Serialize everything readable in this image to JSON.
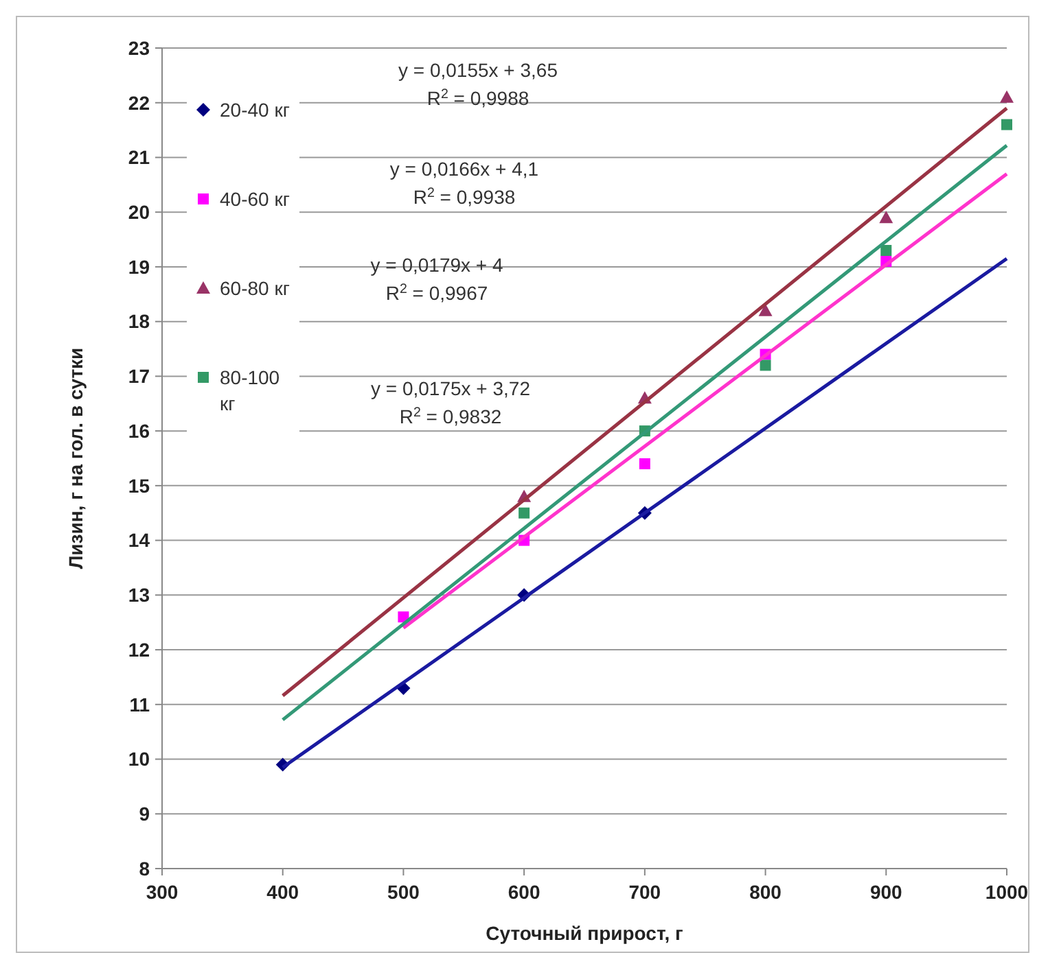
{
  "chart_data": {
    "type": "scatter",
    "xlabel": "Суточный прирост, г",
    "ylabel": "Лизин, г на гол. в сутки",
    "xlim": [
      300,
      1000
    ],
    "ylim": [
      8,
      23
    ],
    "xticks": [
      300,
      400,
      500,
      600,
      700,
      800,
      900,
      1000
    ],
    "yticks": [
      8,
      9,
      10,
      11,
      12,
      13,
      14,
      15,
      16,
      17,
      18,
      19,
      20,
      21,
      22,
      23
    ],
    "grid": "y",
    "legend": "top left",
    "series": [
      {
        "name": "20-40 кг",
        "color": "#000080",
        "marker": "diamond",
        "x": [
          400,
          500,
          600,
          700
        ],
        "values": [
          9.9,
          11.3,
          13.0,
          14.5
        ]
      },
      {
        "name": "40-60 кг",
        "color": "#ff00ff",
        "marker": "square",
        "x": [
          500,
          600,
          700,
          800,
          900
        ],
        "values": [
          12.6,
          14.0,
          15.4,
          17.4,
          19.1
        ]
      },
      {
        "name": "60-80 кг",
        "color": "#993366",
        "marker": "triangle",
        "x": [
          600,
          700,
          800,
          900,
          1000
        ],
        "values": [
          14.8,
          16.6,
          18.2,
          19.9,
          22.1
        ]
      },
      {
        "name": "80-100 кг",
        "color": "#339966",
        "marker": "square",
        "x": [
          600,
          700,
          800,
          900,
          1000
        ],
        "values": [
          14.5,
          16.0,
          17.2,
          19.3,
          21.6
        ]
      },
      {
        "type": "line",
        "color": "#1a1aa0",
        "x": [
          400,
          1000
        ],
        "values": [
          9.85,
          19.15
        ]
      },
      {
        "type": "line",
        "color": "#ff33cc",
        "x": [
          500,
          1000
        ],
        "values": [
          12.4,
          20.7
        ]
      },
      {
        "type": "line",
        "color": "#993344",
        "x": [
          400,
          1000
        ],
        "values": [
          11.16,
          21.9
        ]
      },
      {
        "type": "line",
        "color": "#339977",
        "x": [
          400,
          1000
        ],
        "values": [
          10.72,
          21.22
        ]
      }
    ],
    "annotations": [
      "y = 0,0155x + 3,65\nR$^{2}$ = 0,9988",
      "y = 0,0166x + 4,1\nR$^{2}$ = 0,9938",
      "y = 0,0179x + 4\nR$^{2}$ = 0,9967",
      "y = 0,0175x + 3,72\nR$^{2}$ = 0,9832"
    ]
  }
}
